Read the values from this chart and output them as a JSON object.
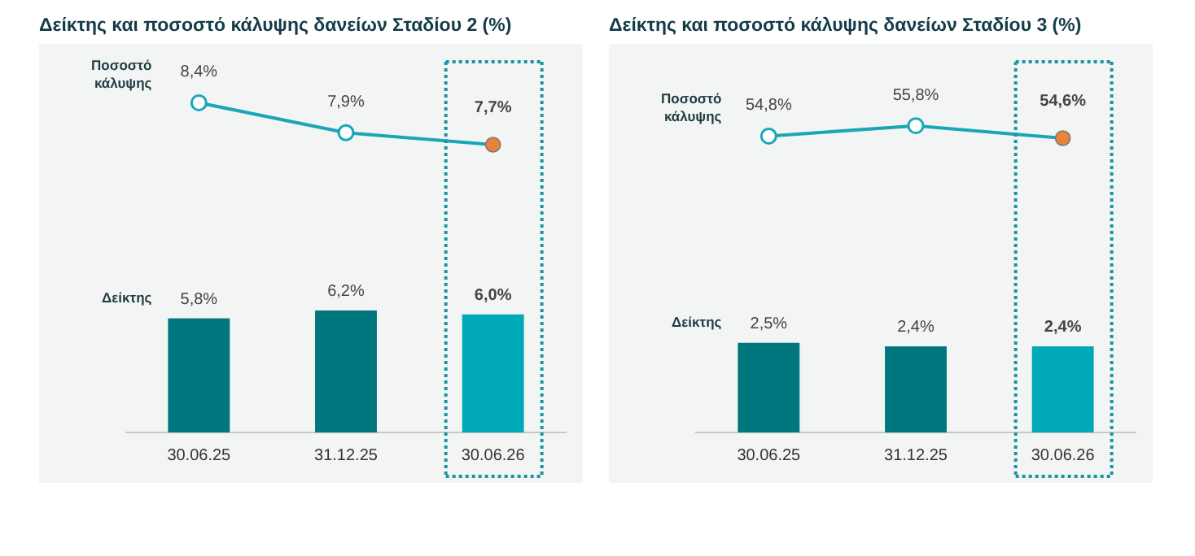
{
  "chart_data": [
    {
      "type": "bar",
      "title": "Δείκτης και ποσοστό κάλυψης δανείων Σταδίου 2 (%)",
      "categories": [
        "30.06.25",
        "31.12.25",
        "30.06.26"
      ],
      "ylim": [
        0,
        19.5
      ],
      "y2lim": [
        2.9,
        9.3
      ],
      "marker": "circle",
      "series": [
        {
          "name": "Ποσοστό κάλυψης",
          "type": "line",
          "axis": "y2",
          "color": "#1aa6b4",
          "colors": [
            "#ffffff",
            "#ffffff",
            "#e8833a"
          ],
          "values": [
            8.4,
            7.9,
            7.7
          ],
          "value_labels": [
            "8,4%",
            "7,9%",
            "7,7%"
          ]
        },
        {
          "name": "Δείκτης",
          "type": "bar",
          "colors": [
            "#00777f",
            "#00777f",
            "#00a9b8"
          ],
          "values": [
            5.8,
            6.2,
            6.0
          ],
          "value_labels": [
            "5,8%",
            "6,2%",
            "6,0%"
          ]
        }
      ]
    },
    {
      "type": "bar",
      "title": "Δείκτης και ποσοστό κάλυψης δανείων Σταδίου 3 (%)",
      "categories": [
        "30.06.25",
        "31.12.25",
        "30.06.26"
      ],
      "ylim": [
        0,
        10.7
      ],
      "y2lim": [
        26.3,
        63.2
      ],
      "marker": "circle",
      "series": [
        {
          "name": "Ποσοστό κάλυψης",
          "type": "line",
          "axis": "y2",
          "color": "#1aa6b4",
          "colors": [
            "#ffffff",
            "#ffffff",
            "#e8833a"
          ],
          "values": [
            54.8,
            55.8,
            54.6
          ],
          "value_labels": [
            "54,8%",
            "55,8%",
            "54,6%"
          ]
        },
        {
          "name": "Δείκτης",
          "type": "bar",
          "colors": [
            "#00777f",
            "#00777f",
            "#00a9b8"
          ],
          "values": [
            2.5,
            2.4,
            2.4
          ],
          "value_labels": [
            "2,5%",
            "2,4%",
            "2,4%"
          ]
        }
      ]
    }
  ]
}
